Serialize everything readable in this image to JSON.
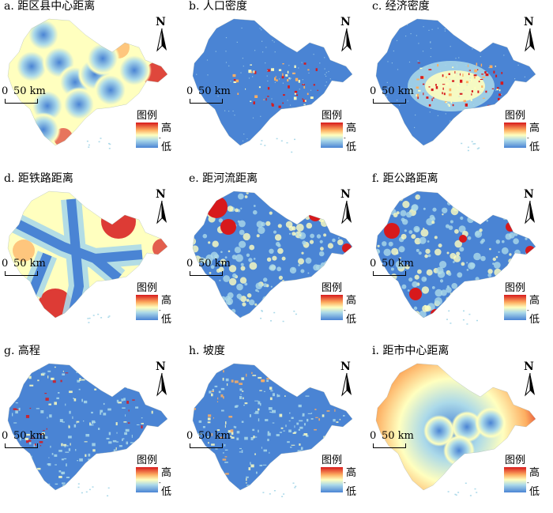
{
  "panels": [
    {
      "title": "a. 距区县中心距离",
      "style": "dist_county"
    },
    {
      "title": "b. 人口密度",
      "style": "pop"
    },
    {
      "title": "c. 经济密度",
      "style": "econ"
    },
    {
      "title": "d. 距铁路距离",
      "style": "rail"
    },
    {
      "title": "e. 距河流距离",
      "style": "river"
    },
    {
      "title": "f. 距公路距离",
      "style": "road"
    },
    {
      "title": "g. 高程",
      "style": "elev"
    },
    {
      "title": "h. 坡度",
      "style": "slope"
    },
    {
      "title": "i. 距市中心距离",
      "style": "city"
    }
  ],
  "north_label": "N",
  "scale": {
    "zero": "0",
    "distance": "50 km"
  },
  "legend": {
    "title": "图例",
    "high": "高",
    "low": "低",
    "tick": "-"
  },
  "colors": {
    "high": "#d7191c",
    "mid": "#ffffbf",
    "low": "#4a84d4"
  }
}
